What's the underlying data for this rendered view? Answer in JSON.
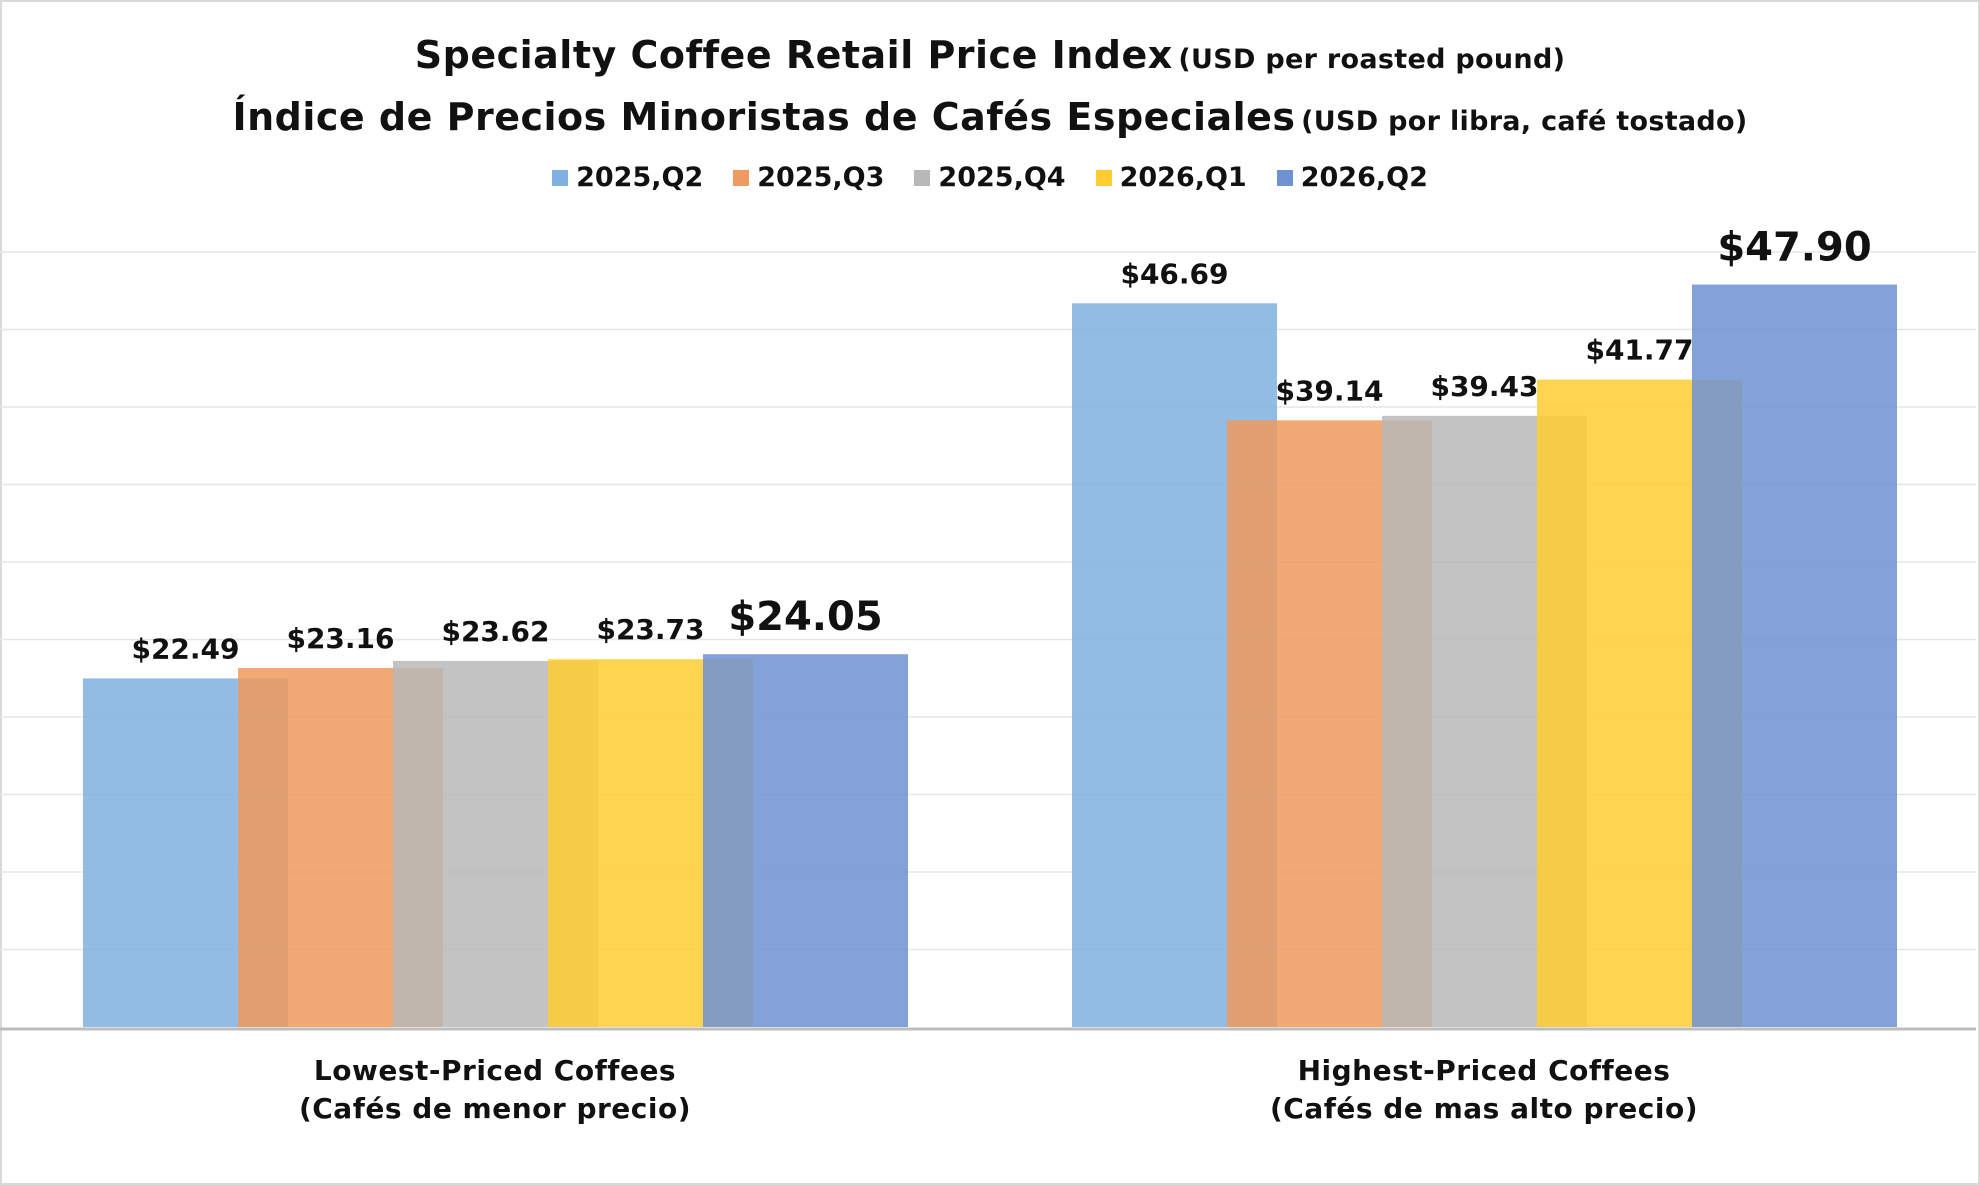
{
  "chart_data": {
    "type": "bar",
    "title_en": "Specialty Coffee Retail Price Index",
    "title_en_unit": "(USD per roasted pound)",
    "title_es": "Índice de Precios Minoristas de Cafés Especiales",
    "title_es_unit": "(USD por libra, café tostado)",
    "categories": [
      {
        "line1": "Lowest-Priced Coffees",
        "line2": "(Cafés de menor precio)"
      },
      {
        "line1": "Highest-Priced Coffees",
        "line2": "(Cafés de mas alto precio)"
      }
    ],
    "series": [
      {
        "name": "2025,Q2",
        "color": "#7fb0df",
        "values": [
          22.49,
          46.69
        ],
        "labels": [
          "$22.49",
          "$46.69"
        ]
      },
      {
        "name": "2025,Q3",
        "color": "#ef9a5e",
        "values": [
          23.16,
          39.14
        ],
        "labels": [
          "$23.16",
          "$39.14"
        ]
      },
      {
        "name": "2025,Q4",
        "color": "#b8b8b8",
        "values": [
          23.62,
          39.43
        ],
        "labels": [
          "$23.62",
          "$39.43"
        ]
      },
      {
        "name": "2026,Q1",
        "color": "#ffcd33",
        "values": [
          23.73,
          41.77
        ],
        "labels": [
          "$23.73",
          "$41.77"
        ]
      },
      {
        "name": "2026,Q2",
        "color": "#6f92d4",
        "values": [
          24.05,
          47.9
        ],
        "labels": [
          "$24.05",
          "$47.90"
        ]
      }
    ],
    "emphasized_series": "2026,Q2",
    "ylim": [
      0,
      50
    ],
    "grid": true,
    "legend_position": "top-center"
  }
}
